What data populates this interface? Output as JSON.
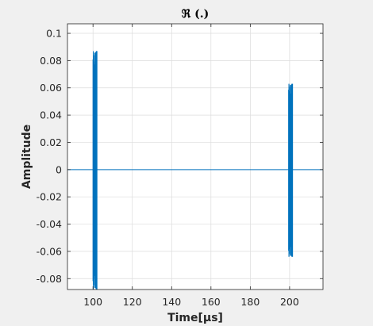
{
  "chart_data": {
    "type": "line",
    "title": "ℜ (.)",
    "xlabel": "Time[μs]",
    "ylabel": "Amplitude",
    "xlim": [
      87,
      217
    ],
    "ylim": [
      -0.088,
      0.107
    ],
    "xticks": [
      100,
      120,
      140,
      160,
      180,
      200
    ],
    "yticks": [
      0.1,
      0.08,
      0.06,
      0.04,
      0.02,
      0,
      -0.02,
      -0.04,
      -0.06,
      -0.08
    ],
    "grid": true,
    "color": "#0072bd",
    "series": [
      {
        "baseline": 0,
        "bursts": [
          {
            "x_start": 100,
            "x_end": 102,
            "y_max": 0.087,
            "y_min": -0.088
          },
          {
            "x_start": 199.5,
            "x_end": 201.5,
            "y_max": 0.063,
            "y_min": -0.064
          }
        ]
      }
    ]
  }
}
